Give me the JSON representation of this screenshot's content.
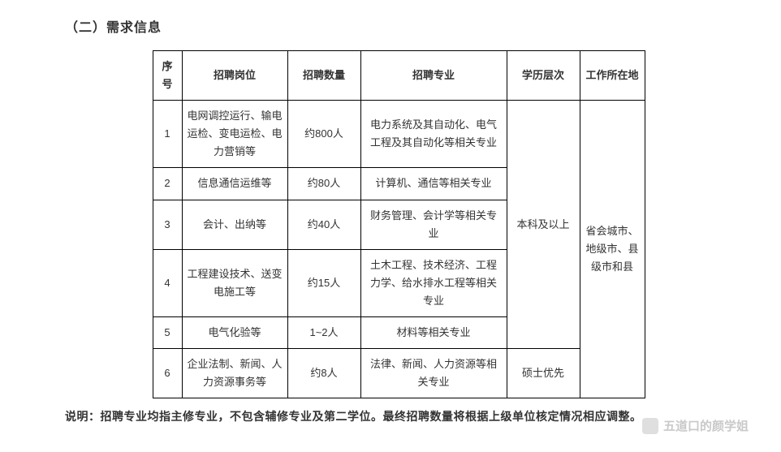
{
  "section_title": "（二）需求信息",
  "table": {
    "headers": {
      "seq": "序号",
      "position": "招聘岗位",
      "quantity": "招聘数量",
      "major": "招聘专业",
      "edu": "学历层次",
      "loc": "工作所在地"
    },
    "rows": [
      {
        "seq": "1",
        "position": "电网调控运行、输电运检、变电运检、电力营销等",
        "quantity": "约800人",
        "major": "电力系统及其自动化、电气工程及其自动化等相关专业"
      },
      {
        "seq": "2",
        "position": "信息通信运维等",
        "quantity": "约80人",
        "major": "计算机、通信等相关专业"
      },
      {
        "seq": "3",
        "position": "会计、出纳等",
        "quantity": "约40人",
        "major": "财务管理、会计学等相关专业"
      },
      {
        "seq": "4",
        "position": "工程建设技术、送变电施工等",
        "quantity": "约15人",
        "major": "土木工程、技术经济、工程力学、给水排水工程等相关专业"
      },
      {
        "seq": "5",
        "position": "电气化验等",
        "quantity": "1~2人",
        "major": "材料等相关专业"
      },
      {
        "seq": "6",
        "position": "企业法制、新闻、人力资源事务等",
        "quantity": "约8人",
        "major": "法律、新闻、人力资源等相关专业"
      }
    ],
    "edu_group1": "本科及以上",
    "edu_group2": "硕士优先",
    "loc_merged": "省会城市、地级市、县级市和县"
  },
  "note": "说明：招聘专业均指主修专业，不包含辅修专业及第二学位。最终招聘数量将根据上级单位核定情况相应调整。",
  "watermark": "五道口的颜学姐"
}
